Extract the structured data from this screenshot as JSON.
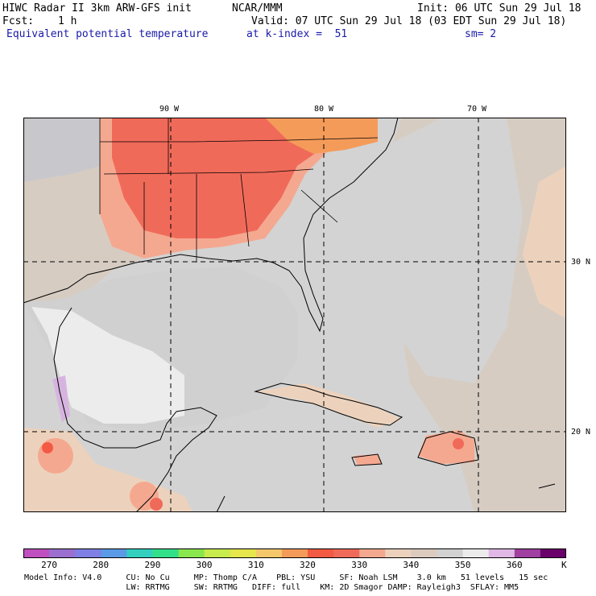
{
  "header": {
    "title": "HIWC Radar II 3km ARW-GFS init",
    "org": "NCAR/MMM",
    "init": "Init: 06 UTC Sun 29 Jul 18",
    "fcst_label": "Fcst:",
    "fcst_value": "1 h",
    "valid": "Valid: 07 UTC Sun 29 Jul 18 (03 EDT Sun 29 Jul 18)",
    "field": "Equivalent potential temperature",
    "level": "at k-index =  51",
    "smoothing": "sm= 2"
  },
  "axes": {
    "lon_labels": [
      "90 W",
      "80 W",
      "70 W"
    ],
    "lat_labels": [
      "30 N",
      "20 N"
    ]
  },
  "colorbar": {
    "labels": [
      "270",
      "280",
      "290",
      "300",
      "310",
      "320",
      "330",
      "340",
      "350",
      "360"
    ],
    "unit": "K",
    "colors": [
      "#c050c0",
      "#9a6fd0",
      "#7f7fe6",
      "#5a9ae6",
      "#33d0c0",
      "#33e08a",
      "#8ae64d",
      "#c8ec4d",
      "#e6e64d",
      "#f5c76b",
      "#f59b5a",
      "#f25a43",
      "#f06a5a",
      "#f5a890",
      "#ecd2bc",
      "#dcccc0",
      "#d2d2d2",
      "#ececec",
      "#e0b8e6",
      "#a040a0",
      "#6a006a"
    ]
  },
  "footer": {
    "line1": "Model Info: V4.0     CU: No Cu     MP: Thomp C/A    PBL: YSU     SF: Noah LSM    3.0 km   51 levels   15 sec",
    "line2": "                     LW: RRTMG     SW: RRTMG   DIFF: full    KM: 2D Smagor DAMP: Rayleigh3  SFLAY: MM5"
  }
}
